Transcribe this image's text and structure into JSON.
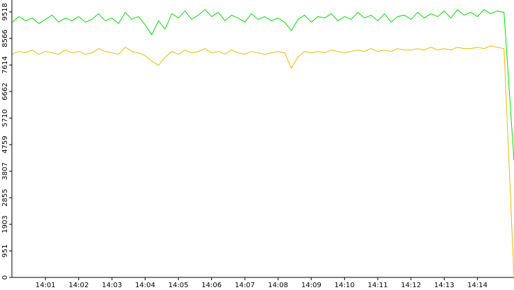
{
  "chart_data": {
    "type": "line",
    "x": [
      0,
      0.2,
      0.4,
      0.6,
      0.8,
      1,
      1.2,
      1.4,
      1.6,
      1.8,
      2,
      2.2,
      2.4,
      2.6,
      2.8,
      3,
      3.2,
      3.4,
      3.6,
      3.8,
      4,
      4.2,
      4.4,
      4.6,
      4.8,
      5,
      5.2,
      5.4,
      5.6,
      5.8,
      6,
      6.2,
      6.4,
      6.6,
      6.8,
      7,
      7.2,
      7.4,
      7.6,
      7.8,
      8,
      8.2,
      8.4,
      8.6,
      8.8,
      9,
      9.2,
      9.4,
      9.6,
      9.8,
      10,
      10.2,
      10.4,
      10.6,
      10.8,
      11,
      11.2,
      11.4,
      11.6,
      11.8,
      12,
      12.2,
      12.4,
      12.6,
      12.8,
      13,
      13.2,
      13.4,
      13.6,
      13.8,
      14,
      14.2,
      14.4,
      14.6,
      14.8,
      15.1
    ],
    "series": [
      {
        "color": "#00e000",
        "values": [
          9150,
          9350,
          9200,
          9300,
          9100,
          9250,
          9400,
          9150,
          9300,
          9200,
          9350,
          9150,
          9250,
          9450,
          9200,
          9300,
          9100,
          9500,
          9250,
          9350,
          9050,
          8700,
          9200,
          8900,
          9450,
          9300,
          9550,
          9250,
          9400,
          9600,
          9350,
          9500,
          9200,
          9400,
          9300,
          9150,
          9450,
          9250,
          9350,
          9200,
          9300,
          9150,
          8850,
          9250,
          9400,
          9150,
          9350,
          9300,
          9450,
          9200,
          9350,
          9250,
          9500,
          9300,
          9400,
          9200,
          9450,
          9150,
          9350,
          9400,
          9250,
          9500,
          9300,
          9450,
          9350,
          9550,
          9300,
          9600,
          9400,
          9500,
          9350,
          9600,
          9450,
          9550,
          9500,
          4200
        ]
      },
      {
        "color": "#f0b800",
        "values": [
          8000,
          8100,
          8050,
          8150,
          8000,
          8100,
          8050,
          8000,
          8150,
          8050,
          8100,
          8000,
          8050,
          8200,
          8100,
          8050,
          8000,
          8250,
          8100,
          8050,
          7950,
          7750,
          7600,
          7900,
          8100,
          8000,
          8150,
          8050,
          8100,
          8200,
          8050,
          8100,
          8000,
          8150,
          8050,
          8000,
          8100,
          8050,
          8000,
          8050,
          8100,
          8050,
          7500,
          7900,
          8100,
          8050,
          8100,
          8050,
          8150,
          8100,
          8050,
          8100,
          8150,
          8100,
          8200,
          8100,
          8150,
          8100,
          8200,
          8150,
          8150,
          8200,
          8150,
          8250,
          8150,
          8200,
          8150,
          8250,
          8200,
          8200,
          8250,
          8200,
          8300,
          8250,
          8200,
          0
        ]
      }
    ],
    "xlim": [
      0,
      15.1
    ],
    "xticks": [
      {
        "value": 1,
        "label": "14:01"
      },
      {
        "value": 2,
        "label": "14:02"
      },
      {
        "value": 3,
        "label": "14:03"
      },
      {
        "value": 4,
        "label": "14:04"
      },
      {
        "value": 5,
        "label": "14:05"
      },
      {
        "value": 6,
        "label": "14:06"
      },
      {
        "value": 7,
        "label": "14:07"
      },
      {
        "value": 8,
        "label": "14:08"
      },
      {
        "value": 9,
        "label": "14:09"
      },
      {
        "value": 10,
        "label": "14:10"
      },
      {
        "value": 11,
        "label": "14:11"
      },
      {
        "value": 12,
        "label": "14:12"
      },
      {
        "value": 13,
        "label": "14:13"
      },
      {
        "value": 14,
        "label": "14:14"
      }
    ],
    "ylim": [
      0,
      9518
    ],
    "yticks": [
      0,
      951,
      1903,
      2855,
      3807,
      4759,
      5710,
      6662,
      7614,
      8566,
      9518
    ]
  }
}
